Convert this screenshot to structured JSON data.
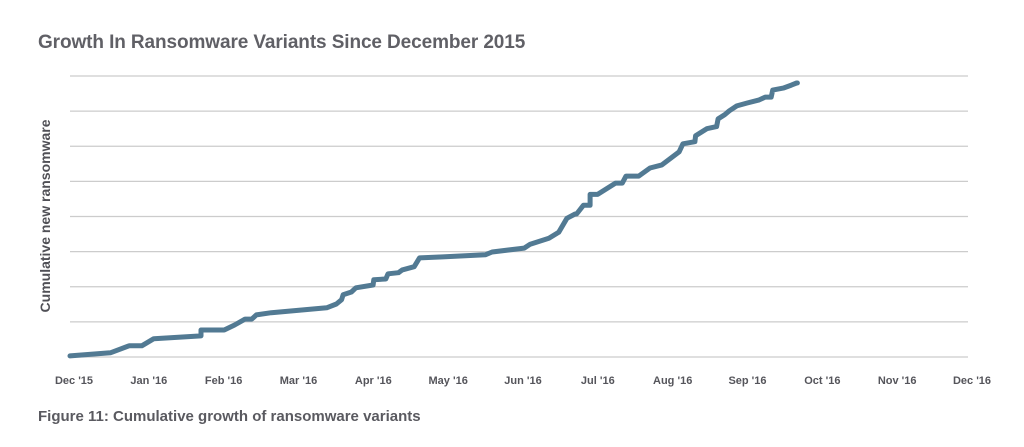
{
  "chart_data": {
    "type": "line",
    "title": "Growth In Ransomware Variants Since December 2015",
    "caption": "Figure 11: Cumulative growth of ransomware variants",
    "xlabel": "",
    "ylabel": "Cumulative new ransomware",
    "x_ticks": [
      "Dec '15",
      "Jan '16",
      "Feb '16",
      "Mar '16",
      "Apr '16",
      "May '16",
      "Jun '16",
      "Jul '16",
      "Aug '16",
      "Sep '16",
      "Oct '16",
      "Nov '16",
      "Dec '16"
    ],
    "y_ticks_labeled": false,
    "y_gridlines": 9,
    "ylim": [
      0,
      8
    ],
    "xlim": [
      0,
      12
    ],
    "grid": true,
    "line_color": "#527a93",
    "grid_color": "#cccccc",
    "series": [
      {
        "name": "Cumulative new ransomware",
        "x": [
          0,
          0.54,
          0.79,
          0.96,
          1.12,
          1.75,
          1.75,
          2.06,
          2.2,
          2.34,
          2.43,
          2.49,
          2.69,
          3.43,
          3.56,
          3.63,
          3.65,
          3.76,
          3.82,
          4.05,
          4.06,
          4.22,
          4.25,
          4.39,
          4.44,
          4.6,
          4.67,
          4.98,
          5.55,
          5.64,
          6.07,
          6.15,
          6.4,
          6.53,
          6.64,
          6.64,
          6.75,
          6.77,
          6.86,
          6.95,
          6.95,
          7.05,
          7.29,
          7.38,
          7.43,
          7.6,
          7.75,
          7.91,
          8.14,
          8.19,
          8.35,
          8.36,
          8.51,
          8.64,
          8.66,
          8.75,
          8.81,
          8.91,
          9.05,
          9.21,
          9.29,
          9.37,
          9.39,
          9.54,
          9.64,
          9.71,
          9.72
        ],
        "y": [
          0.03,
          0.12,
          0.32,
          0.32,
          0.52,
          0.6,
          0.77,
          0.77,
          0.91,
          1.08,
          1.08,
          1.2,
          1.26,
          1.4,
          1.51,
          1.63,
          1.77,
          1.85,
          1.97,
          2.05,
          2.2,
          2.22,
          2.37,
          2.4,
          2.48,
          2.57,
          2.82,
          2.85,
          2.91,
          2.99,
          3.1,
          3.21,
          3.38,
          3.55,
          3.95,
          3.95,
          4.07,
          4.07,
          4.32,
          4.32,
          4.63,
          4.63,
          4.95,
          4.95,
          5.15,
          5.15,
          5.38,
          5.47,
          5.84,
          6.07,
          6.13,
          6.3,
          6.5,
          6.56,
          6.78,
          6.9,
          7.01,
          7.15,
          7.23,
          7.32,
          7.4,
          7.4,
          7.6,
          7.66,
          7.74,
          7.8,
          7.8
        ]
      }
    ]
  }
}
